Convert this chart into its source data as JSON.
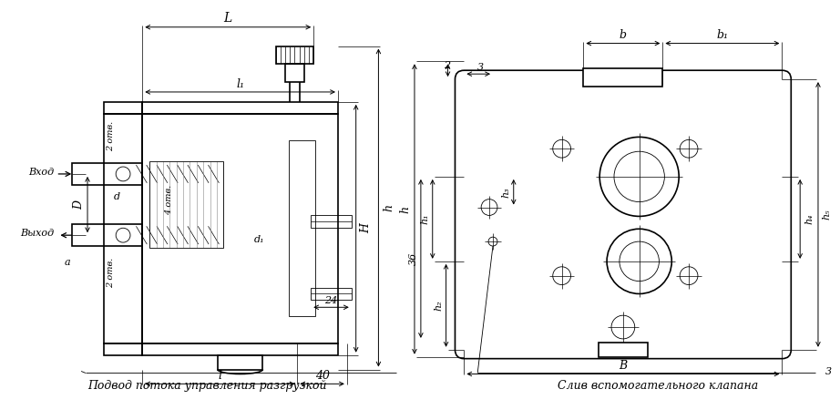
{
  "bg_color": "#ffffff",
  "line_color": "#000000",
  "lw": 1.2,
  "lw_thin": 0.6,
  "lw_dim": 0.7,
  "fig_width": 9.0,
  "fig_height": 4.46,
  "texts": {
    "L": "L",
    "l1": "l₁",
    "l": "l",
    "D": "D",
    "d": "d",
    "d1": "d₁",
    "a": "a",
    "H": "H",
    "h_left": "h",
    "num_24": "24",
    "num_40": "40",
    "vhod": "Вход",
    "vyhod": "Выход",
    "otv2_top": "2 отв.",
    "otv4": "4 отв.",
    "otv2_bot": "2 отв.",
    "cap_left": "Подвод потока управления разгрузкой",
    "b": "b",
    "b1": "b₁",
    "h1": "h₁",
    "h2": "h₂",
    "h3": "h₃",
    "h4": "h₄",
    "h5": "h₅",
    "h_right": "h",
    "B": "B",
    "num2": "2",
    "num3_top": "3",
    "num3_bot": "3",
    "num36": "36",
    "cap_right": "Слив вспомогательного клапана"
  }
}
